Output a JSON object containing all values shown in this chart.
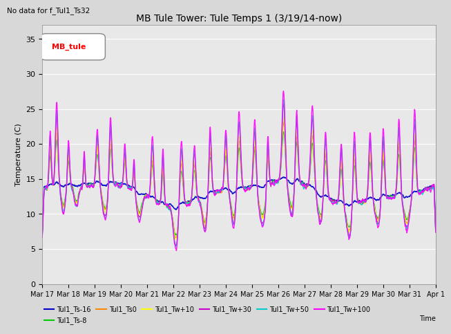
{
  "title": "MB Tule Tower: Tule Temps 1 (3/19/14-now)",
  "no_data_text": "No data for f_Tul1_Ts32",
  "ylabel": "Temperature (C)",
  "xlabel": "Time",
  "ylim": [
    0,
    37
  ],
  "yticks": [
    0,
    5,
    10,
    15,
    20,
    25,
    30,
    35
  ],
  "legend_box_label": "MB_tule",
  "legend_entries": [
    {
      "label": "Tul1_Ts-16",
      "color": "#0000cc"
    },
    {
      "label": "Tul1_Ts-8",
      "color": "#00cc00"
    },
    {
      "label": "Tul1_Ts0",
      "color": "#ff8800"
    },
    {
      "label": "Tul1_Tw+10",
      "color": "#ffff00"
    },
    {
      "label": "Tul1_Tw+30",
      "color": "#cc00cc"
    },
    {
      "label": "Tul1_Tw+50",
      "color": "#00cccc"
    },
    {
      "label": "Tul1_Tw+100",
      "color": "#ff00ff"
    }
  ],
  "background_color": "#d8d8d8",
  "plot_bg_color": "#e8e8e8",
  "grid_color": "#ffffff",
  "xtick_labels": [
    "Mar 17",
    "Mar 18",
    "Mar 19",
    "Mar 20",
    "Mar 21",
    "Mar 22",
    "Mar 23",
    "Mar 24",
    "Mar 25",
    "Mar 26",
    "Mar 27",
    "Mar 28",
    "Mar 29",
    "Mar 30",
    "Mar 31",
    "Apr 1"
  ],
  "num_days": 15
}
